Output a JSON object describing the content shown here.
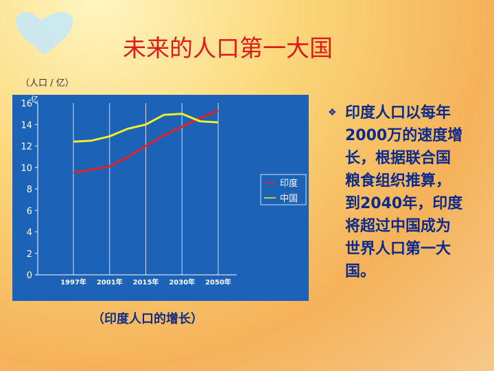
{
  "title": "未来的人口第一大国",
  "bullet": "印度人口以每年2000万的速度增长，根据联合国粮食组织推算，到2040年，印度将超过中国成为世界人口第一大国。",
  "caption": "（印度人口的增长）",
  "chart_data": {
    "type": "line",
    "y_label": "（人口 / 亿）",
    "y_unit": "亿",
    "x": [
      "1997年",
      null,
      "2001年",
      null,
      "2015年",
      null,
      "2030年",
      null,
      "2050年"
    ],
    "series": [
      {
        "name": "印度",
        "color": "#e8201c",
        "values": [
          9.5,
          9.8,
          10.1,
          11.0,
          12.0,
          13.0,
          13.8,
          14.6,
          15.3
        ]
      },
      {
        "name": "中国",
        "color": "#f4ee2a",
        "values": [
          12.4,
          12.5,
          12.9,
          13.6,
          14.0,
          14.9,
          15.0,
          14.3,
          14.2
        ]
      }
    ],
    "ylim": [
      0,
      16
    ],
    "yticks": [
      0,
      2,
      4,
      6,
      8,
      10,
      12,
      14,
      16
    ],
    "legend": "right",
    "background": "#1c63b8"
  }
}
